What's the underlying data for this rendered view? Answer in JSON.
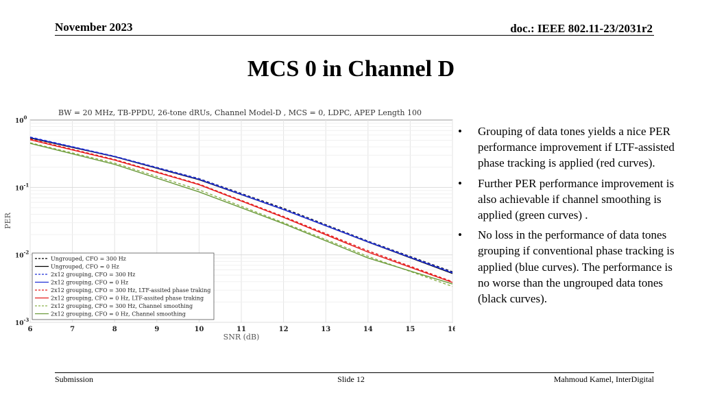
{
  "header": {
    "date": "November 2023",
    "doc": "doc.: IEEE 802.11-23/2031r2"
  },
  "slide_title": "MCS 0 in Channel D",
  "bullets": [
    "Grouping of data tones yields a nice PER performance improvement if LTF-assisted phase tracking is applied (red curves).",
    "Further PER performance improvement is also achievable if channel smoothing is applied (green curves) .",
    "No loss in the performance of data tones grouping if conventional phase tracking is applied (blue curves). The performance is no worse than the ungrouped data tones (black curves)."
  ],
  "footer": {
    "left": "Submission",
    "center": "Slide 12",
    "right": "Mahmoud Kamel, InterDigital"
  },
  "chart_data": {
    "type": "line",
    "title": "BW = 20 MHz, TB-PPDU, 26-tone dRUs, Channel Model-D , MCS = 0, LDPC, APEP Length 100",
    "xlabel": "SNR (dB)",
    "ylabel": "PER",
    "xlim": [
      6,
      16
    ],
    "ylim": [
      0.001,
      1
    ],
    "yscale": "log",
    "grid": true,
    "legend_position": "bottom-left",
    "x_ticks": [
      "6",
      "7",
      "8",
      "9",
      "10",
      "11",
      "12",
      "13",
      "14",
      "15",
      "16"
    ],
    "y_ticks": [
      {
        "base": "10",
        "exp": "0"
      },
      {
        "base": "10",
        "exp": "-1"
      },
      {
        "base": "10",
        "exp": "-2"
      },
      {
        "base": "10",
        "exp": "-3"
      }
    ],
    "x": [
      6,
      8,
      10,
      12,
      14,
      16
    ],
    "series": [
      {
        "name": "Ungrouped, CFO = 300 Hz",
        "color": "#000000",
        "dash": true,
        "values": [
          0.55,
          0.29,
          0.135,
          0.049,
          0.016,
          0.0056
        ]
      },
      {
        "name": "Ungrouped, CFO = 0 Hz",
        "color": "#000000",
        "dash": false,
        "values": [
          0.54,
          0.285,
          0.13,
          0.047,
          0.0155,
          0.0053
        ]
      },
      {
        "name": "2x12 grouping, CFO = 300 Hz",
        "color": "#1f2fd6",
        "dash": true,
        "values": [
          0.56,
          0.29,
          0.134,
          0.048,
          0.0158,
          0.0055
        ]
      },
      {
        "name": "2x12 grouping, CFO = 0 Hz",
        "color": "#1f2fd6",
        "dash": false,
        "values": [
          0.55,
          0.288,
          0.132,
          0.047,
          0.0156,
          0.0054
        ]
      },
      {
        "name": "2x12 grouping, CFO = 300 Hz, LTF-assited phase traking",
        "color": "#e41a1a",
        "dash": true,
        "values": [
          0.52,
          0.26,
          0.112,
          0.037,
          0.0115,
          0.004
        ]
      },
      {
        "name": "2x12 grouping, CFO = 0 Hz, LTF-assited phase traking",
        "color": "#e41a1a",
        "dash": false,
        "values": [
          0.51,
          0.255,
          0.11,
          0.036,
          0.011,
          0.0039
        ]
      },
      {
        "name": "2x12 grouping, CFO = 300 Hz, Channel smoothing",
        "color": "#8ab04a",
        "dash": true,
        "values": [
          0.46,
          0.23,
          0.092,
          0.03,
          0.0095,
          0.0034
        ]
      },
      {
        "name": "2x12 grouping, CFO = 0 Hz, Channel smoothing",
        "color": "#6a9a3a",
        "dash": false,
        "values": [
          0.45,
          0.22,
          0.086,
          0.029,
          0.009,
          0.0037
        ]
      }
    ]
  }
}
